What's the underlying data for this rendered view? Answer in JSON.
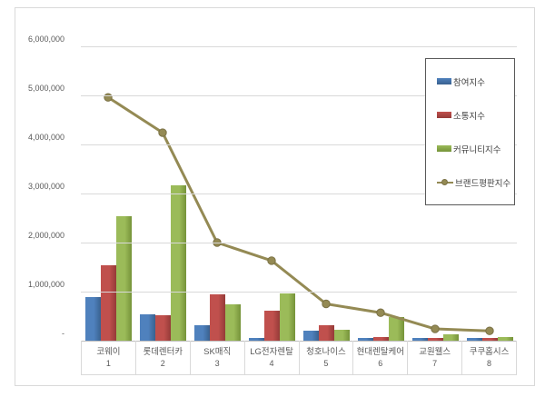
{
  "chart_data": {
    "type": "bar+line",
    "title": "",
    "categories": [
      "코웨이",
      "롯데렌터카",
      "SK매직",
      "LG전자렌탈",
      "청호나이스",
      "현대렌탈케어",
      "교원웰스",
      "쿠쿠홈시스"
    ],
    "category_ranks": [
      "1",
      "2",
      "3",
      "4",
      "5",
      "6",
      "7",
      "8"
    ],
    "series": [
      {
        "name": "참여지수",
        "type": "bar",
        "color": "#4f81bd",
        "color_dark": "#39618f",
        "values": [
          880000,
          540000,
          310000,
          50000,
          210000,
          60000,
          60000,
          60000
        ]
      },
      {
        "name": "소통지수",
        "type": "bar",
        "color": "#c0504d",
        "color_dark": "#953b38",
        "values": [
          1540000,
          510000,
          950000,
          610000,
          320000,
          80000,
          50000,
          50000
        ]
      },
      {
        "name": "커뮤니티지수",
        "type": "bar",
        "color": "#9bbb59",
        "color_dark": "#769339",
        "values": [
          2530000,
          3160000,
          740000,
          970000,
          220000,
          480000,
          130000,
          80000
        ]
      },
      {
        "name": "브랜드평판지수",
        "type": "line",
        "color": "#948a54",
        "color_dark": "#7a7145",
        "values": [
          4960000,
          4240000,
          2000000,
          1630000,
          750000,
          570000,
          240000,
          200000
        ]
      }
    ],
    "ylim": [
      0,
      6000000
    ],
    "ytick_interval": 1000000,
    "ytick_labels": [
      "6,000,000",
      "5,000,000",
      "4,000,000",
      "3,000,000",
      "2,000,000",
      "1,000,000",
      "-"
    ],
    "grid": true,
    "legend_position": "right-inside",
    "colors": {
      "gridline": "#d9d9d9",
      "axis_line": "#bfbfbf",
      "tick_text": "#595959",
      "frame_border": "#d9d9d9",
      "legend_border": "#595959",
      "background": "#ffffff"
    }
  }
}
